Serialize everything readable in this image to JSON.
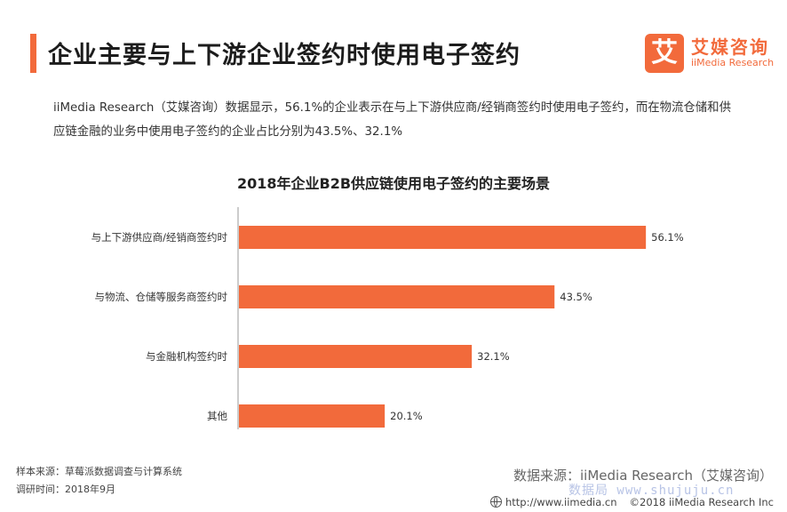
{
  "header": {
    "title": "企业主要与上下游企业签约时使用电子签约",
    "logo_mark": "艾",
    "logo_cn": "艾媒咨询",
    "logo_en": "iiMedia Research"
  },
  "intro_text": "iiMedia Research（艾媒咨询）数据显示，56.1%的企业表示在与上下游供应商/经销商签约时使用电子签约，而在物流仓储和供应链金融的业务中使用电子签约的企业占比分别为43.5%、32.1%",
  "chart_title": "2018年企业B2B供应链使用电子签约的主要场景",
  "chart_data": {
    "type": "bar",
    "orientation": "horizontal",
    "title": "2018年企业B2B供应链使用电子签约的主要场景",
    "categories": [
      "与上下游供应商/经销商签约时",
      "与物流、仓储等服务商签约时",
      "与金融机构签约时",
      "其他"
    ],
    "values": [
      56.1,
      43.5,
      32.1,
      20.1
    ],
    "value_labels": [
      "56.1%",
      "43.5%",
      "32.1%",
      "20.1%"
    ],
    "xlim": [
      0,
      60
    ],
    "bar_color": "#f26a3b",
    "axis_color": "#999999",
    "grid": false,
    "legend": "none"
  },
  "footer": {
    "sample_source": "样本来源：草莓派数据调查与计算系统",
    "survey_time": "调研时间：2018年9月",
    "data_source": "数据来源：iiMedia Research（艾媒咨询）",
    "watermark": "数据局 www.shujuju.cn",
    "url": "http://www.iimedia.cn",
    "copyright": "©2018  iiMedia Research Inc"
  },
  "colors": {
    "accent": "#f26a3b",
    "watermark": "#b8c4e6"
  },
  "icons": {
    "logo": "iimedia-logo-icon",
    "globe": "globe-icon"
  }
}
